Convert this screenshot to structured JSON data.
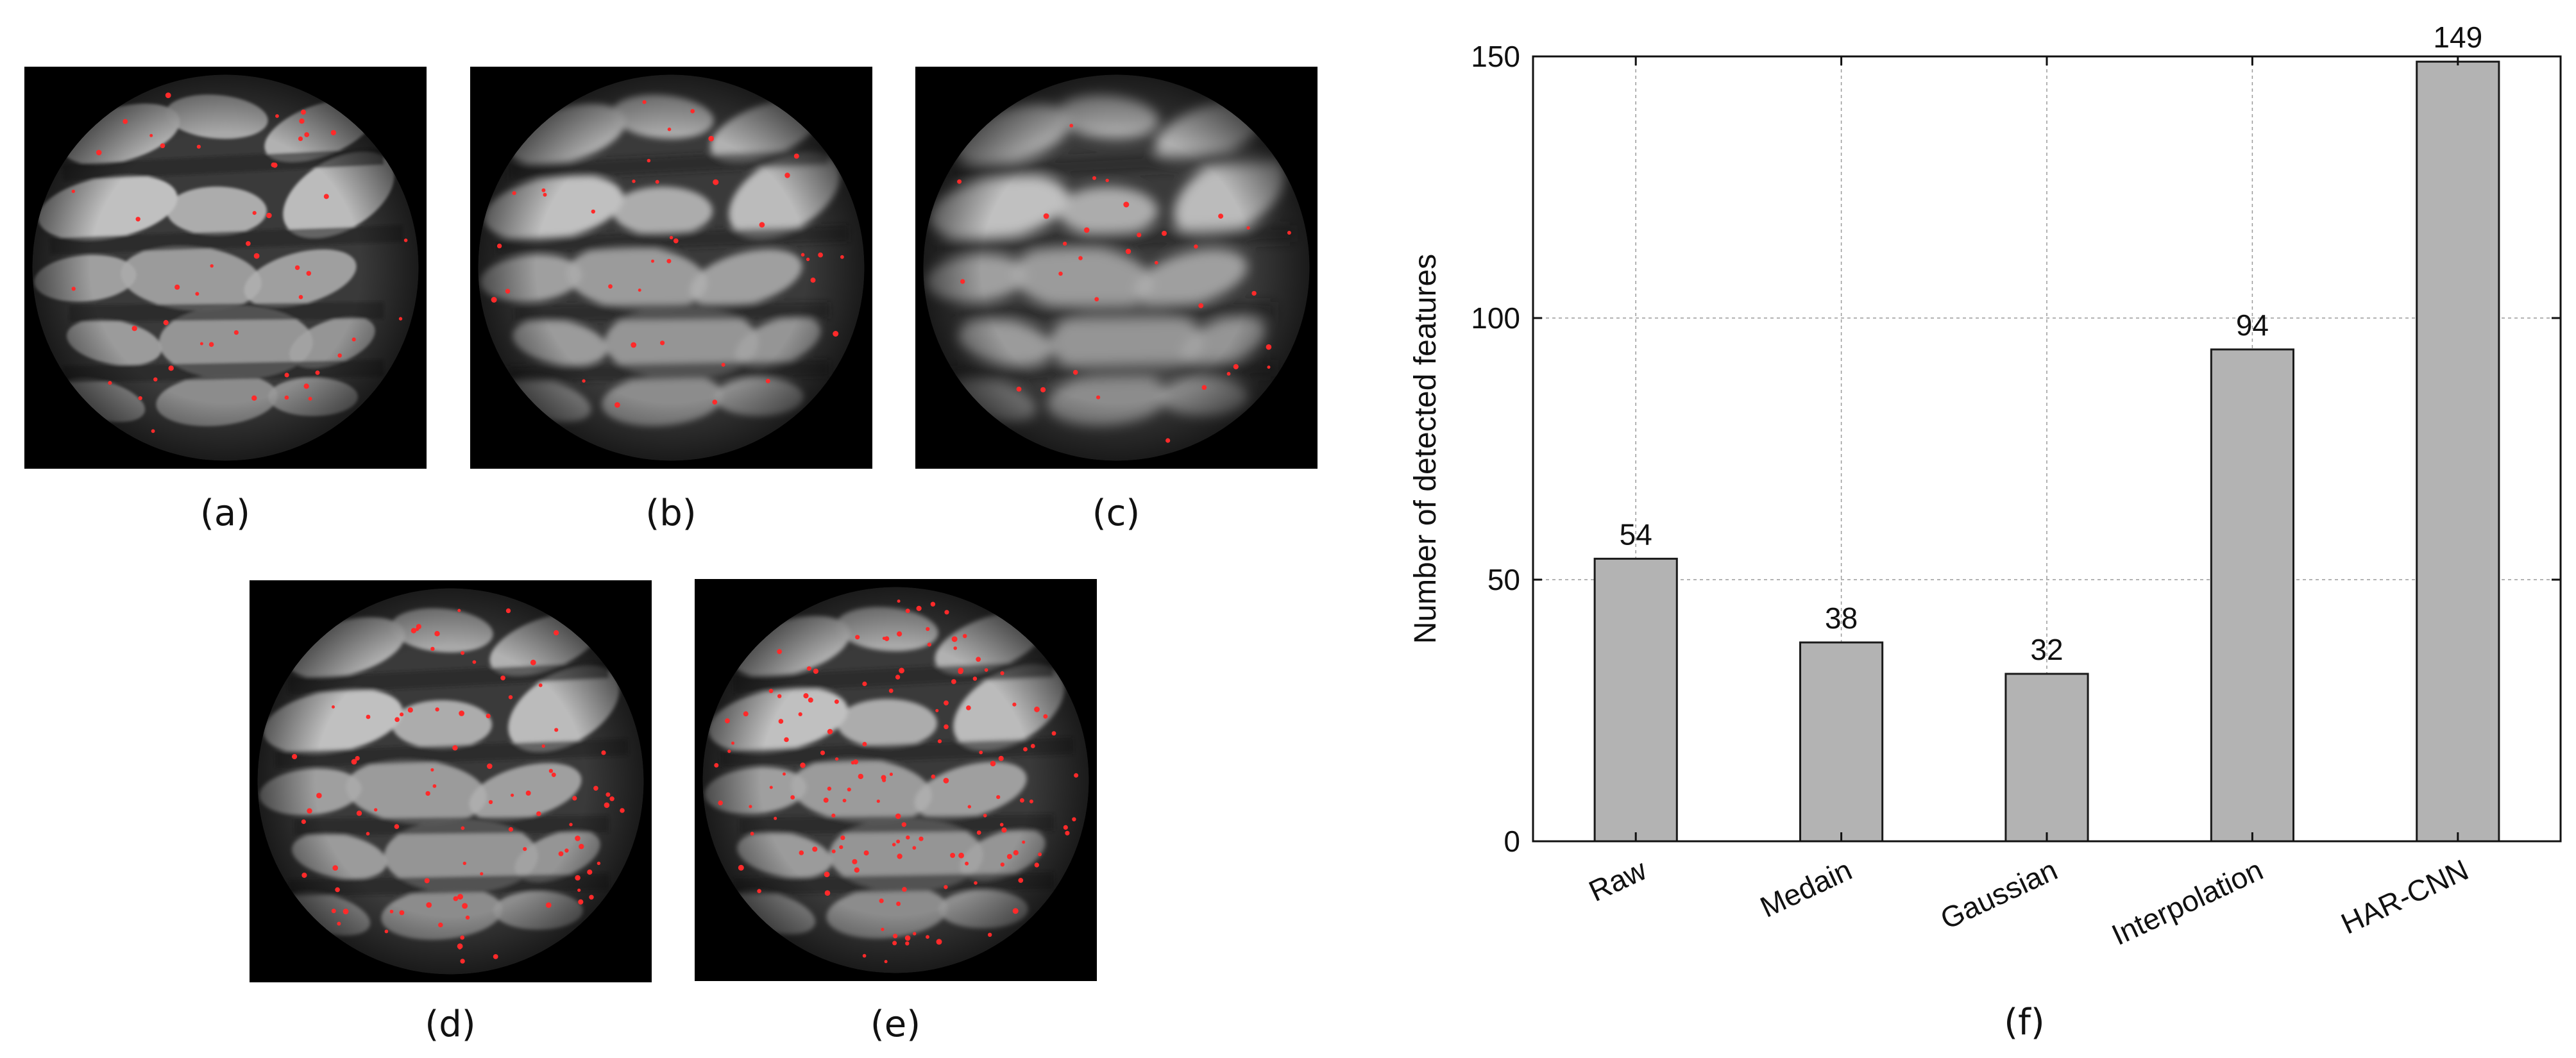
{
  "panels": {
    "a": {
      "caption": "(a)",
      "feature_points": 48
    },
    "b": {
      "caption": "(b)",
      "feature_points": 38
    },
    "c": {
      "caption": "(c)",
      "feature_points": 32
    },
    "d": {
      "caption": "(d)",
      "feature_points": 90
    },
    "e": {
      "caption": "(e)",
      "feature_points": 140
    },
    "f": {
      "caption": "(f)"
    }
  },
  "colors": {
    "background": "#000000",
    "marker": "#ff2a2a",
    "bar": "#b3b3b3",
    "bar_stroke": "#1a1a1a",
    "grid": "#9a9a9a"
  },
  "chart_data": {
    "type": "bar",
    "categories": [
      "Raw",
      "Medain",
      "Gaussian",
      "Interpolation",
      "HAR-CNN"
    ],
    "values": [
      54,
      38,
      32,
      94,
      149
    ],
    "data_labels": [
      "54",
      "38",
      "32",
      "94",
      "149"
    ],
    "title": "",
    "xlabel": "",
    "ylabel": "Number of detected features",
    "ylim": [
      0,
      150
    ],
    "yticks": [
      0,
      50,
      100,
      150
    ],
    "grid": true,
    "legend": "none"
  }
}
